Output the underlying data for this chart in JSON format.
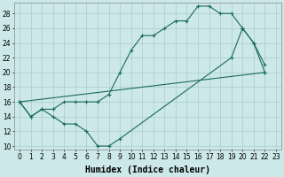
{
  "bg_color": "#cce8e8",
  "line_color": "#1a6b5a",
  "grid_color": "#aacccc",
  "xlabel": "Humidex (Indice chaleur)",
  "xlim": [
    -0.5,
    23.5
  ],
  "ylim": [
    9.5,
    29.5
  ],
  "xticks": [
    0,
    1,
    2,
    3,
    4,
    5,
    6,
    7,
    8,
    9,
    10,
    11,
    12,
    13,
    14,
    15,
    16,
    17,
    18,
    19,
    20,
    21,
    22,
    23
  ],
  "yticks": [
    10,
    12,
    14,
    16,
    18,
    20,
    22,
    24,
    26,
    28
  ],
  "xlabel_fontsize": 7,
  "tick_fontsize": 5.5,
  "c1x": [
    0,
    1,
    2,
    3,
    4,
    5,
    6,
    7,
    8,
    9,
    10,
    11,
    12,
    13,
    14,
    15,
    16,
    17,
    18,
    19,
    20,
    21,
    22
  ],
  "c1y": [
    16,
    14,
    15,
    15,
    16,
    16,
    16,
    16,
    17,
    20,
    23,
    25,
    25,
    26,
    27,
    27,
    29,
    29,
    28,
    28,
    26,
    24,
    21
  ],
  "c2x": [
    0,
    1,
    2,
    3,
    4,
    5,
    6,
    7,
    8,
    9,
    19,
    20,
    21,
    22
  ],
  "c2y": [
    16,
    14,
    15,
    14,
    13,
    13,
    12,
    10,
    10,
    11,
    22,
    26,
    24,
    20
  ],
  "c3x": [
    0,
    22
  ],
  "c3y": [
    16,
    20
  ]
}
